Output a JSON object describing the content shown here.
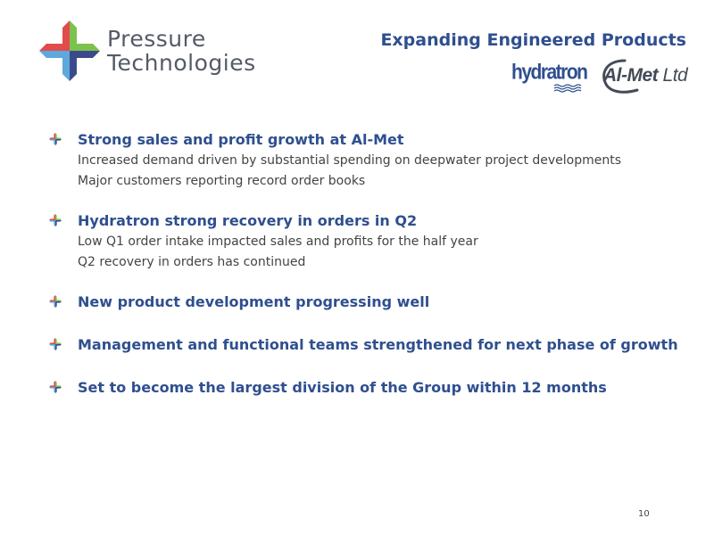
{
  "header": {
    "logo": {
      "line1": "Pressure",
      "line2": "Technologies"
    },
    "title": "Expanding Engineered Products",
    "brands": {
      "hydratron": "hydratron",
      "almet": {
        "name": "Al-Met",
        "suffix": "Ltd"
      }
    }
  },
  "bullets": [
    {
      "heading": "Strong sales and profit growth at Al-Met",
      "details": [
        "Increased demand driven by substantial spending on deepwater project developments",
        "Major customers reporting record order books"
      ]
    },
    {
      "heading": "Hydratron strong recovery in orders in Q2",
      "details": [
        "Low Q1 order intake impacted sales and profits for the half year",
        "Q2 recovery in orders has continued"
      ]
    },
    {
      "heading": "New product development progressing well",
      "details": []
    },
    {
      "heading": "Management and functional teams strengthened for next phase of growth",
      "details": []
    },
    {
      "heading": "Set to become the largest division of the Group within 12 months",
      "details": []
    }
  ],
  "footer": {
    "page_number": "10"
  },
  "colors": {
    "title_blue": "#2f4f8f",
    "logo_red": "#e14b4b",
    "logo_green": "#7cc24e",
    "logo_lightblue": "#5da8dc",
    "logo_navy": "#3c4a8c"
  },
  "icons": {
    "logo": "four-color-cross-logo-icon",
    "bullet": "cross-bullet-icon"
  }
}
